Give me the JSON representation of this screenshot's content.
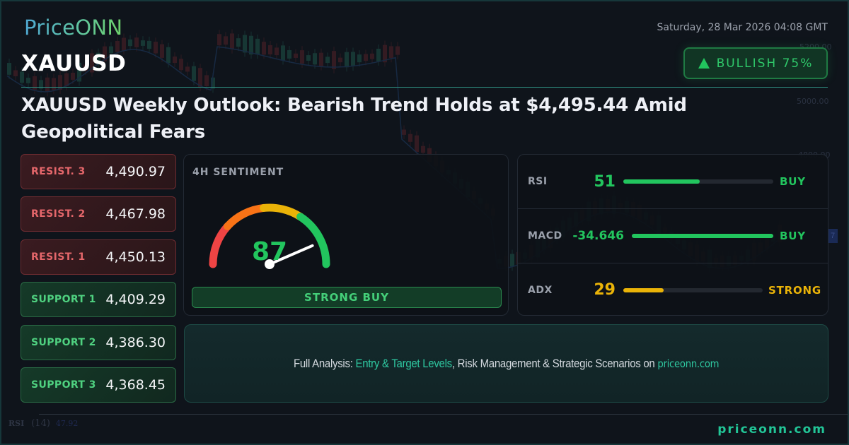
{
  "brand": {
    "logo": "PriceONN"
  },
  "header": {
    "symbol": "XAUUSD",
    "datetime": "Saturday, 28 Mar 2026 04:08 GMT",
    "bias": {
      "icon": "triangle-up-icon",
      "label": "BULLISH 75%",
      "color": "#22c55e"
    }
  },
  "headline": "XAUUSD Weekly Outlook: Bearish Trend Holds at $4,495.44 Amid Geopolitical Fears",
  "levels": [
    {
      "type": "resistance",
      "label": "RESIST. 3",
      "value": "4,490.97"
    },
    {
      "type": "resistance",
      "label": "RESIST. 2",
      "value": "4,467.98"
    },
    {
      "type": "resistance",
      "label": "RESIST. 1",
      "value": "4,450.13"
    },
    {
      "type": "support",
      "label": "SUPPORT 1",
      "value": "4,409.29"
    },
    {
      "type": "support",
      "label": "SUPPORT 2",
      "value": "4,386.30"
    },
    {
      "type": "support",
      "label": "SUPPORT 3",
      "value": "4,368.45"
    }
  ],
  "sentiment": {
    "title": "4H SENTIMENT",
    "score": "87",
    "verdict": "STRONG BUY",
    "gauge_colors": [
      "#ef4444",
      "#f97316",
      "#eab308",
      "#22c55e"
    ]
  },
  "indicators": [
    {
      "name": "RSI",
      "value": "51",
      "fill_pct": 51,
      "signal": "BUY",
      "color": "#22c55e"
    },
    {
      "name": "MACD",
      "value": "-34.646",
      "fill_pct": 100,
      "signal": "BUY",
      "color": "#22c55e"
    },
    {
      "name": "ADX",
      "value": "29",
      "fill_pct": 29,
      "signal": "STRONG",
      "color": "#eab308"
    }
  ],
  "cta": {
    "prefix": "Full Analysis: ",
    "highlight": "Entry & Target Levels",
    "middle": ", Risk Management & Strategic Scenarios on ",
    "site": "priceonn.com"
  },
  "footer": {
    "site": "priceonn.com"
  },
  "background_chart": {
    "price_labels": [
      "5200.00",
      "5000.00",
      "4800.00"
    ],
    "rsi_label": "RSI",
    "rsi_period": "(14)",
    "rsi_value": "47.92",
    "tag": "7"
  }
}
